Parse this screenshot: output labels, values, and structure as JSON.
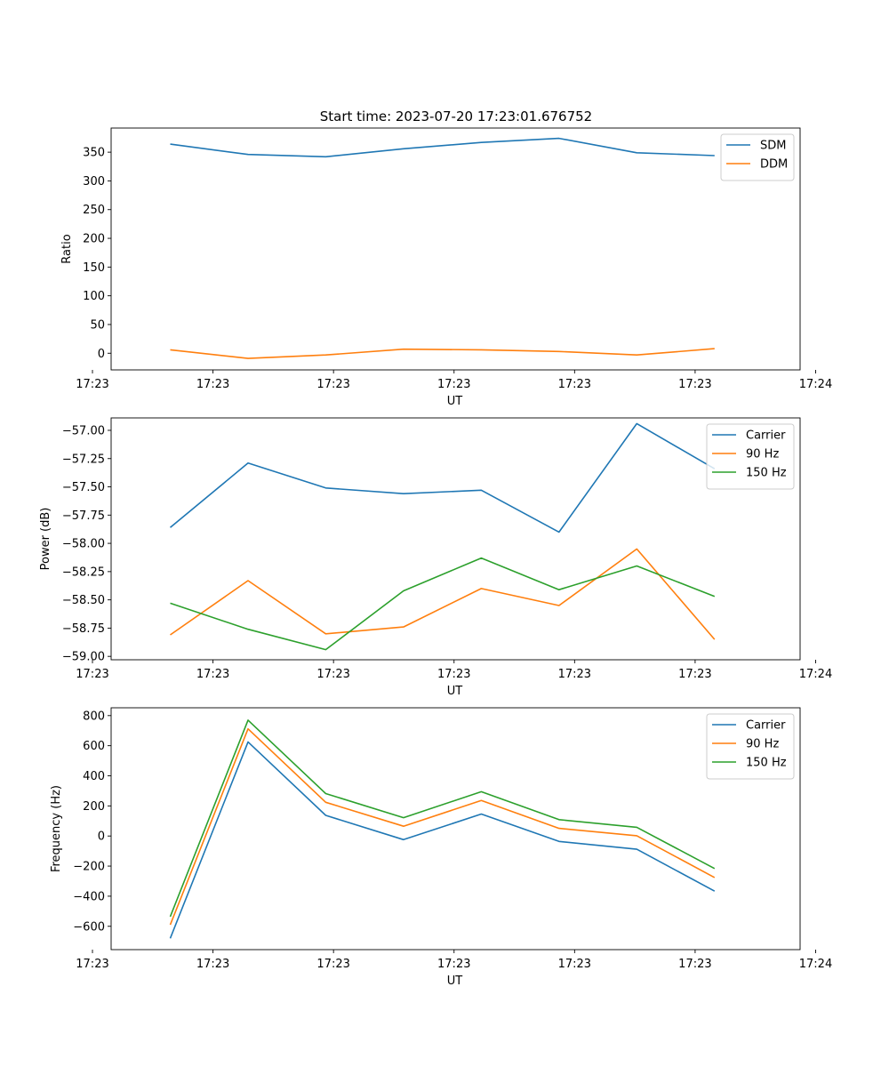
{
  "title": "Start time: 2023-07-20 17:23:01.676752",
  "chart_data": [
    {
      "type": "line",
      "xlabel": "UT",
      "ylabel": "Ratio",
      "x": [
        1,
        2,
        3,
        4,
        5,
        6,
        7,
        8
      ],
      "xlim": [
        0.24,
        9.1
      ],
      "xticks": [
        {
          "value": 0,
          "label": "17:23"
        },
        {
          "value": 1.55,
          "label": "17:23"
        },
        {
          "value": 3.1,
          "label": "17:23"
        },
        {
          "value": 4.65,
          "label": "17:23"
        },
        {
          "value": 6.2,
          "label": "17:23"
        },
        {
          "value": 7.75,
          "label": "17:23"
        },
        {
          "value": 9.3,
          "label": "17:24"
        }
      ],
      "ylim": [
        -29,
        392
      ],
      "yticks": [
        {
          "value": 0,
          "label": "0"
        },
        {
          "value": 50,
          "label": "50"
        },
        {
          "value": 100,
          "label": "100"
        },
        {
          "value": 150,
          "label": "150"
        },
        {
          "value": 200,
          "label": "200"
        },
        {
          "value": 250,
          "label": "250"
        },
        {
          "value": 300,
          "label": "300"
        },
        {
          "value": 350,
          "label": "350"
        }
      ],
      "legend_position": "top-right",
      "series": [
        {
          "name": "SDM",
          "color": "#1f77b4",
          "values": [
            364,
            346,
            342,
            356,
            367,
            374,
            349,
            344
          ]
        },
        {
          "name": "DDM",
          "color": "#ff7f0e",
          "values": [
            6,
            -9,
            -3,
            7,
            6,
            3,
            -3,
            8
          ]
        }
      ]
    },
    {
      "type": "line",
      "xlabel": "UT",
      "ylabel": "Power (dB)",
      "x": [
        1,
        2,
        3,
        4,
        5,
        6,
        7,
        8
      ],
      "xlim": [
        0.24,
        9.1
      ],
      "xticks": [
        {
          "value": 0,
          "label": "17:23"
        },
        {
          "value": 1.55,
          "label": "17:23"
        },
        {
          "value": 3.1,
          "label": "17:23"
        },
        {
          "value": 4.65,
          "label": "17:23"
        },
        {
          "value": 6.2,
          "label": "17:23"
        },
        {
          "value": 7.75,
          "label": "17:23"
        },
        {
          "value": 9.3,
          "label": "17:24"
        }
      ],
      "ylim": [
        -59.03,
        -56.89
      ],
      "yticks": [
        {
          "value": -59.0,
          "label": "−59.00"
        },
        {
          "value": -58.75,
          "label": "−58.75"
        },
        {
          "value": -58.5,
          "label": "−58.50"
        },
        {
          "value": -58.25,
          "label": "−58.25"
        },
        {
          "value": -58.0,
          "label": "−58.00"
        },
        {
          "value": -57.75,
          "label": "−57.75"
        },
        {
          "value": -57.5,
          "label": "−57.50"
        },
        {
          "value": -57.25,
          "label": "−57.25"
        },
        {
          "value": -57.0,
          "label": "−57.00"
        }
      ],
      "legend_position": "top-right",
      "series": [
        {
          "name": "Carrier",
          "color": "#1f77b4",
          "values": [
            -57.86,
            -57.29,
            -57.51,
            -57.56,
            -57.53,
            -57.9,
            -56.94,
            -57.34
          ]
        },
        {
          "name": "90 Hz",
          "color": "#ff7f0e",
          "values": [
            -58.81,
            -58.33,
            -58.8,
            -58.74,
            -58.4,
            -58.55,
            -58.05,
            -58.85
          ]
        },
        {
          "name": "150 Hz",
          "color": "#2ca02c",
          "values": [
            -58.53,
            -58.76,
            -58.94,
            -58.42,
            -58.13,
            -58.41,
            -58.2,
            -58.47
          ]
        }
      ]
    },
    {
      "type": "line",
      "xlabel": "UT",
      "ylabel": "Frequency (Hz)",
      "x": [
        1,
        2,
        3,
        4,
        5,
        6,
        7,
        8
      ],
      "xlim": [
        0.24,
        9.1
      ],
      "xticks": [
        {
          "value": 0,
          "label": "17:23"
        },
        {
          "value": 1.55,
          "label": "17:23"
        },
        {
          "value": 3.1,
          "label": "17:23"
        },
        {
          "value": 4.65,
          "label": "17:23"
        },
        {
          "value": 6.2,
          "label": "17:23"
        },
        {
          "value": 7.75,
          "label": "17:23"
        },
        {
          "value": 9.3,
          "label": "17:24"
        }
      ],
      "ylim": [
        -755,
        852
      ],
      "yticks": [
        {
          "value": -600,
          "label": "−600"
        },
        {
          "value": -400,
          "label": "−400"
        },
        {
          "value": -200,
          "label": "−200"
        },
        {
          "value": 0,
          "label": "0"
        },
        {
          "value": 200,
          "label": "200"
        },
        {
          "value": 400,
          "label": "400"
        },
        {
          "value": 600,
          "label": "600"
        },
        {
          "value": 800,
          "label": "800"
        }
      ],
      "legend_position": "top-right",
      "series": [
        {
          "name": "Carrier",
          "color": "#1f77b4",
          "values": [
            -680,
            625,
            137,
            -24,
            146,
            -36,
            -88,
            -366
          ]
        },
        {
          "name": "90 Hz",
          "color": "#ff7f0e",
          "values": [
            -590,
            712,
            224,
            65,
            236,
            51,
            2,
            -276
          ]
        },
        {
          "name": "150 Hz",
          "color": "#2ca02c",
          "values": [
            -536,
            770,
            282,
            122,
            294,
            109,
            58,
            -216
          ]
        }
      ]
    }
  ]
}
